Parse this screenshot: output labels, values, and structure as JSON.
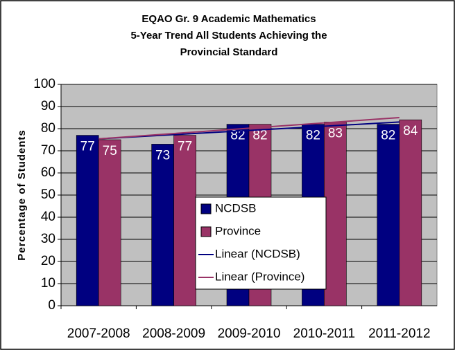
{
  "chart_data": {
    "type": "bar",
    "title": [
      "EQAO Gr. 9 Academic Mathematics",
      "5-Year Trend All Students Achieving the",
      "Provincial Standard"
    ],
    "y_label": "Percentage of Students",
    "categories": [
      "2007-2008",
      "2008-2009",
      "2009-2010",
      "2010-2011",
      "2011-2012"
    ],
    "series": [
      {
        "name": "NCDSB",
        "color": "#000080",
        "values": [
          77,
          73,
          82,
          82,
          82
        ],
        "trendline": {
          "name": "Linear (NCDSB)",
          "color": "#000080"
        }
      },
      {
        "name": "Province",
        "color": "#993366",
        "values": [
          75,
          77,
          82,
          83,
          84
        ],
        "trendline": {
          "name": "Linear (Province)",
          "color": "#993366"
        }
      }
    ],
    "ylim": [
      0,
      100
    ],
    "yticks": [
      0,
      10,
      20,
      30,
      40,
      50,
      60,
      70,
      80,
      90,
      100
    ],
    "grid": true
  }
}
